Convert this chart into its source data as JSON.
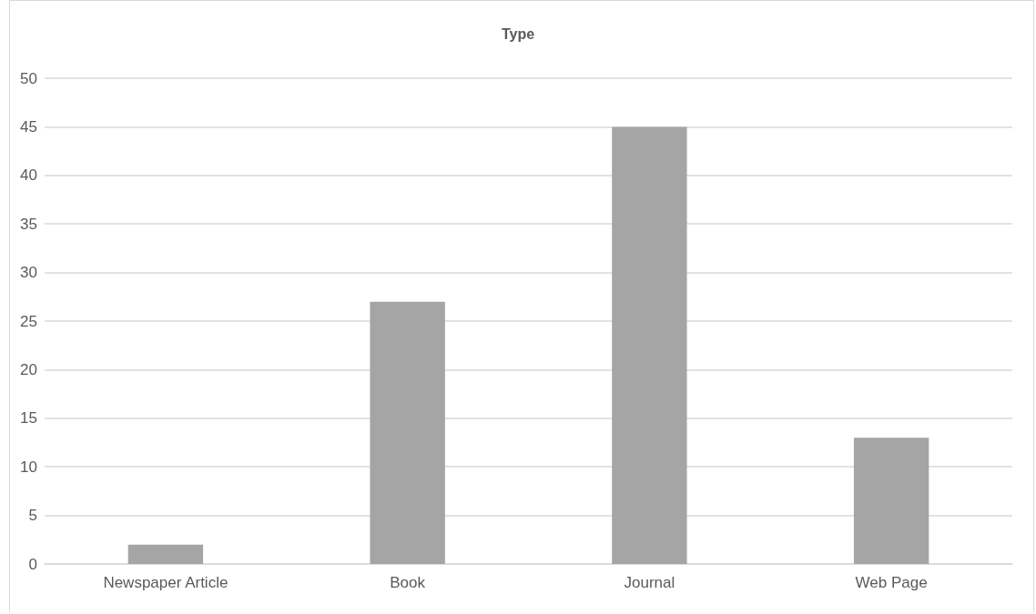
{
  "chart_data": {
    "type": "bar",
    "title": "Type",
    "categories": [
      "Newspaper Article",
      "Book",
      "Journal",
      "Web Page"
    ],
    "values": [
      2,
      27,
      45,
      13
    ],
    "color": "#a5a5a5",
    "ylim": [
      0,
      50
    ],
    "yticks": [
      0,
      5,
      10,
      15,
      20,
      25,
      30,
      35,
      40,
      45,
      50
    ],
    "grid": "y"
  }
}
